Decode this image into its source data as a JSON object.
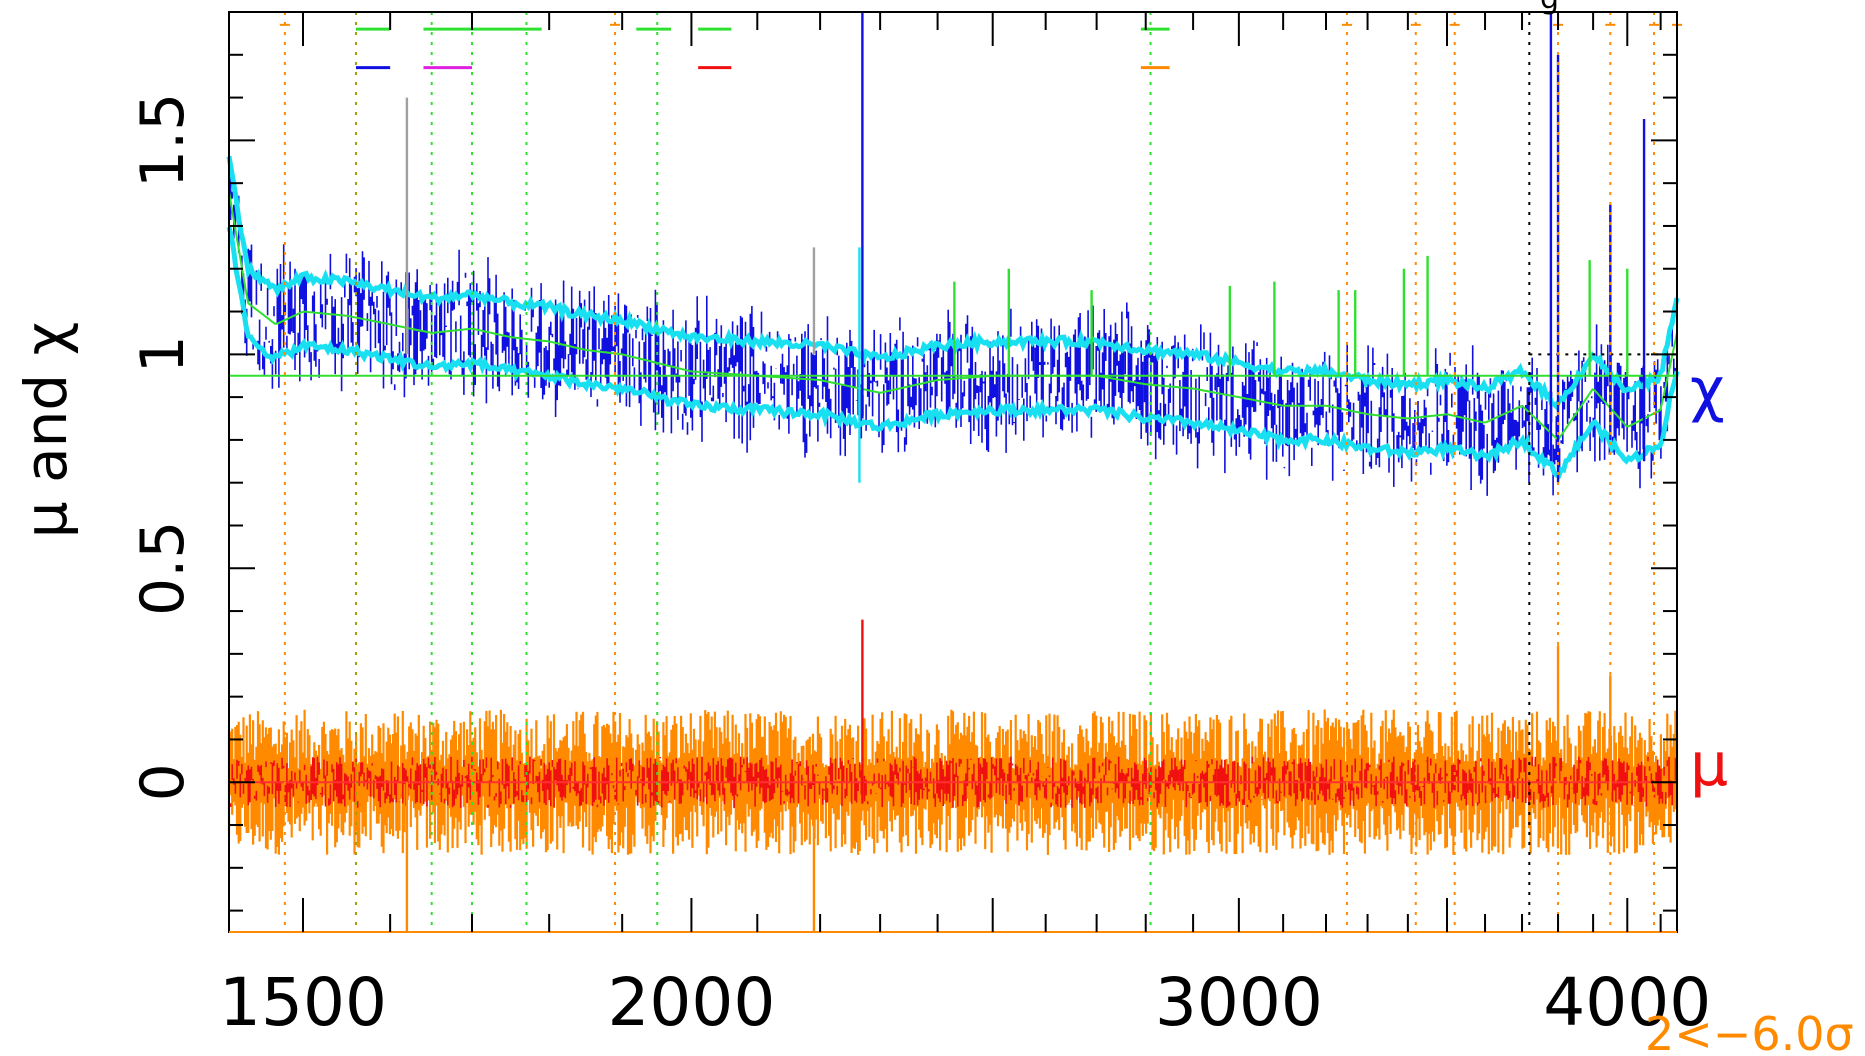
{
  "chart_data": {
    "type": "line",
    "title": "",
    "xlabel": "",
    "ylabel": "μ and χ",
    "xscale": "log",
    "xlim": [
      1420,
      4150
    ],
    "ylim": [
      -0.35,
      1.8
    ],
    "x_ticks": [
      1500,
      2000,
      3000,
      4000
    ],
    "y_ticks": [
      0,
      0.5,
      1,
      1.5
    ],
    "x_tick_labels": [
      "1500",
      "2000",
      "3000",
      "4000"
    ],
    "y_tick_labels": [
      "0",
      "0.5",
      "1",
      "1.5"
    ],
    "grid": false,
    "reference_lines": {
      "chi_level": 0.95,
      "mu_level": 0.0
    },
    "series": [
      {
        "name": "χ",
        "color": "#1010e0",
        "band_color": "#18e0f0",
        "smooth_color": "#30e030",
        "x": [
          1420,
          1440,
          1470,
          1500,
          1550,
          1600,
          1650,
          1700,
          1750,
          1800,
          1850,
          1900,
          2000,
          2100,
          2200,
          2300,
          2400,
          2500,
          2600,
          2700,
          2800,
          2900,
          3000,
          3100,
          3200,
          3300,
          3400,
          3500,
          3600,
          3700,
          3800,
          3900,
          4000,
          4100,
          4150
        ],
        "values": [
          1.38,
          1.12,
          1.07,
          1.1,
          1.09,
          1.07,
          1.05,
          1.06,
          1.04,
          1.03,
          1.01,
          1.0,
          0.96,
          0.95,
          0.94,
          0.91,
          0.94,
          0.95,
          0.95,
          0.95,
          0.93,
          0.92,
          0.9,
          0.88,
          0.88,
          0.86,
          0.85,
          0.86,
          0.84,
          0.88,
          0.8,
          0.92,
          0.83,
          0.87,
          1.05
        ],
        "band_halfwidth": 0.08,
        "noise_halfwidth": 0.13
      },
      {
        "name": "μ",
        "color": "#f01010",
        "band_color": "#ff8a00",
        "x": [
          1420,
          4150
        ],
        "values": [
          0.0,
          0.0
        ],
        "noise_halfwidth": 0.06,
        "band_halfwidth": 0.1
      }
    ],
    "dotted_markers": {
      "orange_x": [
        1480,
        1890,
        3250,
        3420,
        3520,
        3800,
        3950,
        4080,
        4150
      ],
      "green_x": [
        1650,
        1700,
        1770,
        1950,
        2810
      ],
      "black_x": [
        3720
      ],
      "olive_x": [
        1560
      ]
    },
    "spikes": [
      {
        "x": 2270,
        "from": 0.85,
        "to": 1.9,
        "color": "#1010e0"
      },
      {
        "x": 2265,
        "from": 0.7,
        "to": 1.25,
        "color": "#18e0f0"
      },
      {
        "x": 2270,
        "from": -0.05,
        "to": 0.38,
        "color": "#f01010"
      },
      {
        "x": 3780,
        "from": 0.75,
        "to": 1.85,
        "color": "#1010e0"
      },
      {
        "x": 3800,
        "from": 0.7,
        "to": 1.7,
        "color": "#1010e0"
      },
      {
        "x": 4050,
        "from": 0.75,
        "to": 1.55,
        "color": "#1010e0"
      },
      {
        "x": 3950,
        "from": 0.8,
        "to": 1.35,
        "color": "#1010e0"
      },
      {
        "x": 1620,
        "from": 1.0,
        "to": 1.6,
        "color": "#a0a0a0"
      },
      {
        "x": 2190,
        "from": 1.0,
        "to": 1.25,
        "color": "#a0a0a0"
      },
      {
        "x": 2430,
        "from": 0.95,
        "to": 1.17,
        "color": "#30e030"
      },
      {
        "x": 2530,
        "from": 0.95,
        "to": 1.2,
        "color": "#30e030"
      },
      {
        "x": 2690,
        "from": 0.95,
        "to": 1.15,
        "color": "#30e030"
      },
      {
        "x": 2980,
        "from": 0.95,
        "to": 1.16,
        "color": "#30e030"
      },
      {
        "x": 3080,
        "from": 0.95,
        "to": 1.17,
        "color": "#30e030"
      },
      {
        "x": 3230,
        "from": 0.95,
        "to": 1.15,
        "color": "#30e030"
      },
      {
        "x": 3270,
        "from": 0.95,
        "to": 1.15,
        "color": "#30e030"
      },
      {
        "x": 3390,
        "from": 0.95,
        "to": 1.2,
        "color": "#30e030"
      },
      {
        "x": 3450,
        "from": 0.95,
        "to": 1.23,
        "color": "#30e030"
      },
      {
        "x": 3890,
        "from": 0.95,
        "to": 1.22,
        "color": "#30e030"
      },
      {
        "x": 4000,
        "from": 0.95,
        "to": 1.2,
        "color": "#30e030"
      },
      {
        "x": 1620,
        "from": -0.35,
        "to": 0.0,
        "color": "#ff8a00"
      },
      {
        "x": 2190,
        "from": -0.35,
        "to": -0.05,
        "color": "#ff8a00"
      },
      {
        "x": 3800,
        "from": -0.05,
        "to": 0.32,
        "color": "#ff8a00"
      },
      {
        "x": 3950,
        "from": -0.05,
        "to": 0.25,
        "color": "#ff8a00"
      }
    ],
    "top_marks": [
      {
        "x1": 1560,
        "x2": 1600,
        "y": 1.76,
        "color": "#30e030"
      },
      {
        "x1": 1640,
        "x2": 1790,
        "y": 1.76,
        "color": "#30e030"
      },
      {
        "x1": 1920,
        "x2": 1970,
        "y": 1.76,
        "color": "#30e030"
      },
      {
        "x1": 2010,
        "x2": 2060,
        "y": 1.76,
        "color": "#30e030"
      },
      {
        "x1": 2790,
        "x2": 2850,
        "y": 1.76,
        "color": "#30e030"
      },
      {
        "x1": 1560,
        "x2": 1600,
        "y": 1.67,
        "color": "#1010e0"
      },
      {
        "x1": 1640,
        "x2": 1700,
        "y": 1.67,
        "color": "#e020e0"
      },
      {
        "x1": 2010,
        "x2": 2060,
        "y": 1.67,
        "color": "#f01010"
      },
      {
        "x1": 2790,
        "x2": 2850,
        "y": 1.67,
        "color": "#ff8a00"
      }
    ],
    "annotations": {
      "chi_label": "χ",
      "mu_label": "μ",
      "footnote": "2<−6.0σ",
      "top_right_fragment": "g"
    },
    "colors": {
      "chi": "#1010e0",
      "chi_band": "#18e0f0",
      "smooth": "#30e030",
      "mu": "#f01010",
      "mu_band": "#ff8a00",
      "footnote": "#ff8a00"
    }
  }
}
